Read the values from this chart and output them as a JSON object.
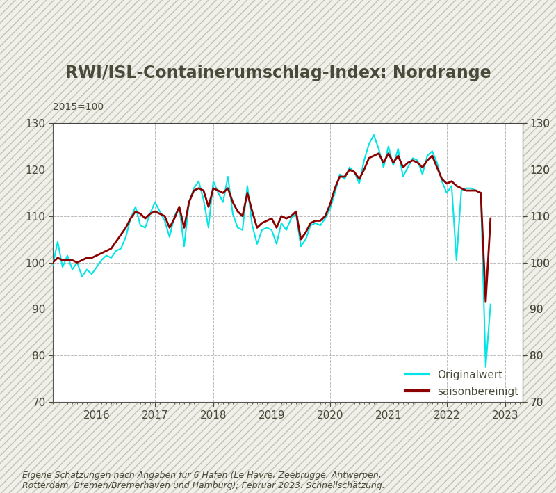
{
  "title": "RWI/ISL-Containerumschlag-Index: Nordrange",
  "subtitle": "2015=100",
  "footnote": "Eigene Schätzungen nach Angaben für 6 Häfen (Le Havre, Zeebrugge, Antwerpen,\nRotterdam, Bremen/Bremerhaven und Hamburg); Februar 2023: Schnellschätzung.",
  "ylim": [
    70,
    130
  ],
  "yticks": [
    70,
    80,
    90,
    100,
    110,
    120,
    130
  ],
  "background_color": "#f0efe8",
  "plot_bg_color": "#ffffff",
  "grid_color": "#bbbbbb",
  "line_original_color": "#00e5e5",
  "line_seasonal_color": "#8b0000",
  "legend_original": "Originalwert",
  "legend_seasonal": "saisonbereinigt",
  "title_color": "#4a4a3a",
  "tick_color": "#4a4a3a",
  "original_values": [
    99.5,
    104.5,
    99.0,
    101.5,
    98.5,
    100.0,
    97.0,
    98.5,
    97.5,
    99.0,
    100.5,
    101.5,
    101.0,
    102.5,
    103.0,
    105.5,
    109.5,
    112.0,
    108.0,
    107.5,
    110.5,
    113.0,
    111.0,
    109.0,
    105.5,
    110.0,
    112.0,
    103.5,
    113.0,
    116.0,
    117.5,
    113.5,
    107.5,
    117.5,
    115.0,
    113.0,
    118.5,
    110.5,
    107.5,
    107.0,
    116.5,
    108.0,
    104.0,
    107.0,
    107.5,
    107.0,
    104.0,
    108.5,
    107.0,
    109.5,
    110.5,
    103.5,
    105.0,
    108.0,
    108.5,
    108.0,
    109.5,
    111.5,
    115.0,
    119.0,
    118.0,
    120.5,
    119.5,
    117.0,
    122.0,
    125.5,
    127.5,
    124.5,
    120.5,
    125.0,
    121.0,
    124.5,
    118.5,
    120.5,
    122.5,
    122.0,
    119.0,
    123.0,
    124.0,
    121.5,
    117.5,
    115.0,
    116.5,
    100.5,
    115.5,
    116.0,
    116.0,
    115.5,
    115.0,
    77.5,
    91.0
  ],
  "seasonal_values": [
    100.0,
    101.0,
    100.5,
    100.5,
    100.5,
    100.0,
    100.5,
    101.0,
    101.0,
    101.5,
    102.0,
    102.5,
    103.0,
    104.5,
    106.0,
    107.5,
    109.5,
    111.0,
    110.5,
    109.5,
    110.5,
    111.0,
    110.5,
    110.0,
    107.5,
    109.5,
    112.0,
    107.5,
    113.0,
    115.5,
    116.0,
    115.5,
    112.0,
    116.0,
    115.5,
    115.0,
    116.0,
    113.0,
    111.0,
    110.0,
    115.0,
    111.0,
    107.5,
    108.5,
    109.0,
    109.5,
    107.5,
    110.0,
    109.5,
    110.0,
    111.0,
    105.0,
    106.5,
    108.5,
    109.0,
    109.0,
    110.0,
    112.5,
    116.0,
    118.5,
    118.5,
    120.0,
    119.5,
    118.0,
    120.0,
    122.5,
    123.0,
    123.5,
    121.5,
    123.5,
    121.5,
    123.0,
    120.5,
    121.5,
    122.0,
    121.5,
    120.5,
    122.0,
    123.0,
    120.5,
    118.0,
    117.0,
    117.5,
    116.5,
    116.0,
    115.5,
    115.5,
    115.5,
    115.0,
    91.5,
    109.5
  ],
  "n_months": 91,
  "start_year": 2015,
  "start_month": 4,
  "xlim_left": 2015.25,
  "xlim_right": 2023.3,
  "xtick_years": [
    2016,
    2017,
    2018,
    2019,
    2020,
    2021,
    2022,
    2023
  ]
}
